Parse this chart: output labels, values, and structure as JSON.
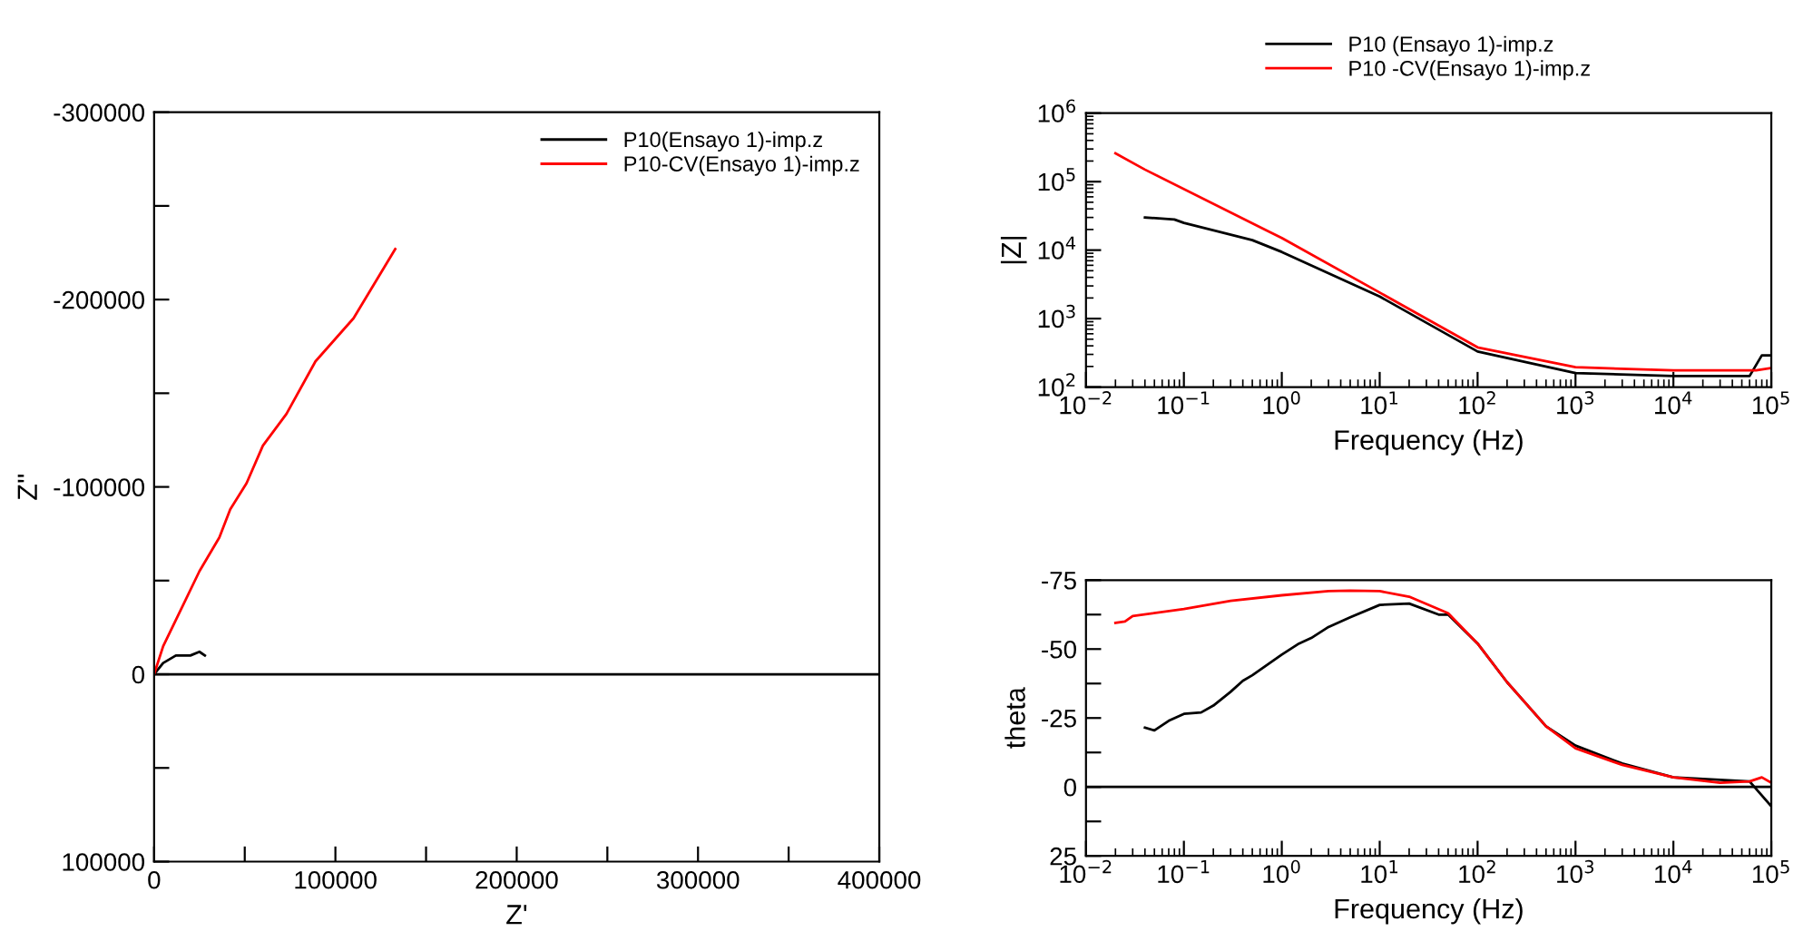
{
  "chart_data": [
    {
      "type": "line",
      "xlabel": "Z'",
      "ylabel": "Z''",
      "legend": "top right",
      "grid": false,
      "xlim": [
        0,
        400000
      ],
      "ylim": [
        100000,
        -300000
      ],
      "xticks": [
        0,
        {
          "value": 50000,
          "label": null
        },
        100000,
        {
          "value": 150000,
          "label": null
        },
        200000,
        {
          "value": 250000,
          "label": null
        },
        300000,
        {
          "value": 350000,
          "label": null
        },
        400000
      ],
      "yticks": [
        100000,
        {
          "value": 50000,
          "label": null
        },
        0,
        {
          "value": -50000,
          "label": null
        },
        -100000,
        {
          "value": -150000,
          "label": null
        },
        -200000,
        {
          "value": -250000,
          "label": null
        },
        -300000
      ],
      "ref_lines": [
        {
          "axis": "y",
          "value": 0,
          "color": "#000000"
        }
      ],
      "series": [
        {
          "name": "P10(Ensayo 1)-imp.z",
          "color": "#000000",
          "x": [
            0,
            5000,
            12000,
            20000,
            25000,
            28000
          ],
          "values": [
            0,
            -6000,
            -10000,
            -10000,
            -12000,
            -10000
          ]
        },
        {
          "name": "P10-CV(Ensayo 1)-imp.z",
          "color": "#ff0000",
          "x": [
            0,
            5000,
            15000,
            25000,
            36000,
            42000,
            51000,
            60000,
            73000,
            89000,
            110000,
            133000
          ],
          "values": [
            0,
            -15000,
            -35000,
            -55000,
            -73000,
            -88000,
            -102000,
            -122000,
            -139000,
            -167000,
            -190000,
            -227000
          ]
        }
      ]
    },
    {
      "type": "line",
      "xlabel": "Frequency (Hz)",
      "ylabel": "|Z|",
      "legend": "top",
      "log": "xy",
      "grid": false,
      "xlim": [
        0.01,
        100000
      ],
      "ylim": [
        100,
        1000000
      ],
      "xticks": [
        {
          "value": 0.01,
          "label": "10$^{−2}$"
        },
        {
          "value": 0.1,
          "label": "10$^{−1}$"
        },
        {
          "value": 1,
          "label": "10$^{0}$"
        },
        {
          "value": 10,
          "label": "10$^{1}$"
        },
        {
          "value": 100,
          "label": "10$^{2}$"
        },
        {
          "value": 1000,
          "label": "10$^{3}$"
        },
        {
          "value": 10000,
          "label": "10$^{4}$"
        },
        {
          "value": 100000,
          "label": "10$^{5}$"
        }
      ],
      "yticks": [
        {
          "value": 100,
          "label": "10$^{2}$"
        },
        {
          "value": 1000,
          "label": "10$^{3}$"
        },
        {
          "value": 10000,
          "label": "10$^{4}$"
        },
        {
          "value": 100000,
          "label": "10$^{5}$"
        },
        {
          "value": 1000000,
          "label": "10$^{6}$"
        }
      ],
      "series": [
        {
          "name": "P10 (Ensayo 1)-imp.z",
          "color": "#000000",
          "x": [
            0.04,
            0.08,
            0.1,
            0.5,
            1,
            10,
            100,
            1000,
            10000,
            60000,
            80000,
            100000
          ],
          "values": [
            30000,
            28000,
            25000,
            14000,
            9400,
            2100,
            330,
            160,
            145,
            145,
            290,
            290
          ]
        },
        {
          "name": "P10 -CV(Ensayo 1)-imp.z",
          "color": "#ff0000",
          "x": [
            0.02,
            0.04,
            1,
            10,
            100,
            1000,
            10000,
            70000,
            100000
          ],
          "values": [
            260000,
            150000,
            15000,
            2400,
            380,
            195,
            175,
            175,
            190
          ]
        }
      ]
    },
    {
      "type": "line",
      "xlabel": "Frequency (Hz)",
      "ylabel": "theta",
      "log": "x",
      "grid": false,
      "xlim": [
        0.01,
        100000
      ],
      "ylim": [
        25,
        -75
      ],
      "xticks": [
        {
          "value": 0.01,
          "label": "10$^{−2}$"
        },
        {
          "value": 0.1,
          "label": "10$^{−1}$"
        },
        {
          "value": 1,
          "label": "10$^{0}$"
        },
        {
          "value": 10,
          "label": "10$^{1}$"
        },
        {
          "value": 100,
          "label": "10$^{2}$"
        },
        {
          "value": 1000,
          "label": "10$^{3}$"
        },
        {
          "value": 10000,
          "label": "10$^{4}$"
        },
        {
          "value": 100000,
          "label": "10$^{5}$"
        }
      ],
      "yticks": [
        25,
        {
          "value": 12.5,
          "label": null
        },
        0,
        {
          "value": -12.5,
          "label": null
        },
        -25,
        {
          "value": -37.5,
          "label": null
        },
        -50,
        {
          "value": -62.5,
          "label": null
        },
        -75
      ],
      "ref_lines": [
        {
          "axis": "y",
          "value": 0,
          "color": "#000000"
        }
      ],
      "series": [
        {
          "color": "#000000",
          "x": [
            0.04,
            0.05,
            0.07,
            0.1,
            0.15,
            0.2,
            0.3,
            0.4,
            0.5,
            1,
            1.5,
            2,
            3,
            5,
            10,
            20,
            40,
            50,
            100,
            200,
            500,
            1000,
            3000,
            10000,
            60000,
            100000
          ],
          "values": [
            -21.5,
            -20.5,
            -24,
            -26.5,
            -27,
            -29.5,
            -34.5,
            -38.5,
            -40.5,
            -48,
            -52,
            -54,
            -58,
            -61.5,
            -66,
            -66.5,
            -62.5,
            -62.5,
            -52,
            -38,
            -22,
            -15,
            -8.5,
            -3.5,
            -2,
            7
          ]
        },
        {
          "color": "#ff0000",
          "x": [
            0.02,
            0.025,
            0.03,
            0.1,
            0.3,
            1,
            3,
            5,
            10,
            20,
            50,
            100,
            200,
            500,
            1000,
            3000,
            10000,
            30000,
            60000,
            80000,
            100000
          ],
          "values": [
            -59.5,
            -60,
            -62,
            -64.5,
            -67.5,
            -69.5,
            -71,
            -71.2,
            -71,
            -69,
            -63,
            -52,
            -38,
            -22,
            -14,
            -8,
            -3.5,
            -1.5,
            -2,
            -3.5,
            -1.5
          ]
        }
      ]
    }
  ]
}
